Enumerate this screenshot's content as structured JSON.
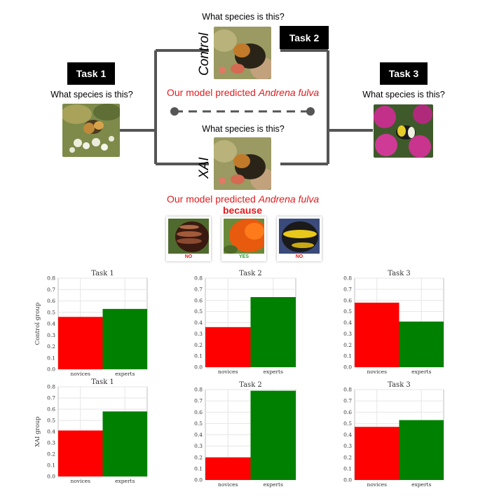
{
  "tasks": {
    "task1": "Task 1",
    "task2": "Task 2",
    "task3": "Task 3"
  },
  "question": "What species is this?",
  "conditions": {
    "control": "Control",
    "xai": "XAI"
  },
  "prediction": {
    "prefix": "Our model predicted ",
    "species": "Andrena fulva",
    "because": "because"
  },
  "explanations": [
    {
      "label": "NO",
      "color": "#e31a1c"
    },
    {
      "label": "YES",
      "color": "#2e9e2e"
    },
    {
      "label": "NO",
      "color": "#e31a1c"
    }
  ],
  "colors": {
    "novices": "#ff0000",
    "experts": "#008000",
    "connector": "#555555"
  },
  "row_labels": {
    "control": "Control group",
    "xai": "XAI group"
  },
  "chart_data": [
    {
      "type": "bar",
      "title": "Task 1",
      "categories": [
        "novices",
        "experts"
      ],
      "values": [
        0.46,
        0.53
      ],
      "ylim": [
        0,
        0.8
      ],
      "yticks": [
        "0.0",
        "0.1",
        "0.2",
        "0.3",
        "0.4",
        "0.5",
        "0.6",
        "0.7",
        "0.8"
      ],
      "ylabel": "Control group",
      "grid": true
    },
    {
      "type": "bar",
      "title": "Task 2",
      "categories": [
        "novices",
        "experts"
      ],
      "values": [
        0.36,
        0.63
      ],
      "ylim": [
        0,
        0.8
      ],
      "yticks": [
        "0.0",
        "0.1",
        "0.2",
        "0.3",
        "0.4",
        "0.5",
        "0.6",
        "0.7",
        "0.8"
      ],
      "grid": true
    },
    {
      "type": "bar",
      "title": "Task 3",
      "categories": [
        "novices",
        "experts"
      ],
      "values": [
        0.58,
        0.41
      ],
      "ylim": [
        0,
        0.8
      ],
      "yticks": [
        "0.0",
        "0.1",
        "0.2",
        "0.3",
        "0.4",
        "0.5",
        "0.6",
        "0.7",
        "0.8"
      ],
      "grid": true
    },
    {
      "type": "bar",
      "title": "Task 1",
      "categories": [
        "novices",
        "experts"
      ],
      "values": [
        0.41,
        0.58
      ],
      "ylim": [
        0,
        0.8
      ],
      "yticks": [
        "0.0",
        "0.1",
        "0.2",
        "0.3",
        "0.4",
        "0.5",
        "0.6",
        "0.7",
        "0.8"
      ],
      "ylabel": "XAI group",
      "grid": true
    },
    {
      "type": "bar",
      "title": "Task 2",
      "categories": [
        "novices",
        "experts"
      ],
      "values": [
        0.2,
        0.79
      ],
      "ylim": [
        0,
        0.8
      ],
      "yticks": [
        "0.0",
        "0.1",
        "0.2",
        "0.3",
        "0.4",
        "0.5",
        "0.6",
        "0.7",
        "0.8"
      ],
      "grid": true
    },
    {
      "type": "bar",
      "title": "Task 3",
      "categories": [
        "novices",
        "experts"
      ],
      "values": [
        0.47,
        0.53
      ],
      "ylim": [
        0,
        0.8
      ],
      "yticks": [
        "0.0",
        "0.1",
        "0.2",
        "0.3",
        "0.4",
        "0.5",
        "0.6",
        "0.7",
        "0.8"
      ],
      "grid": true
    }
  ]
}
